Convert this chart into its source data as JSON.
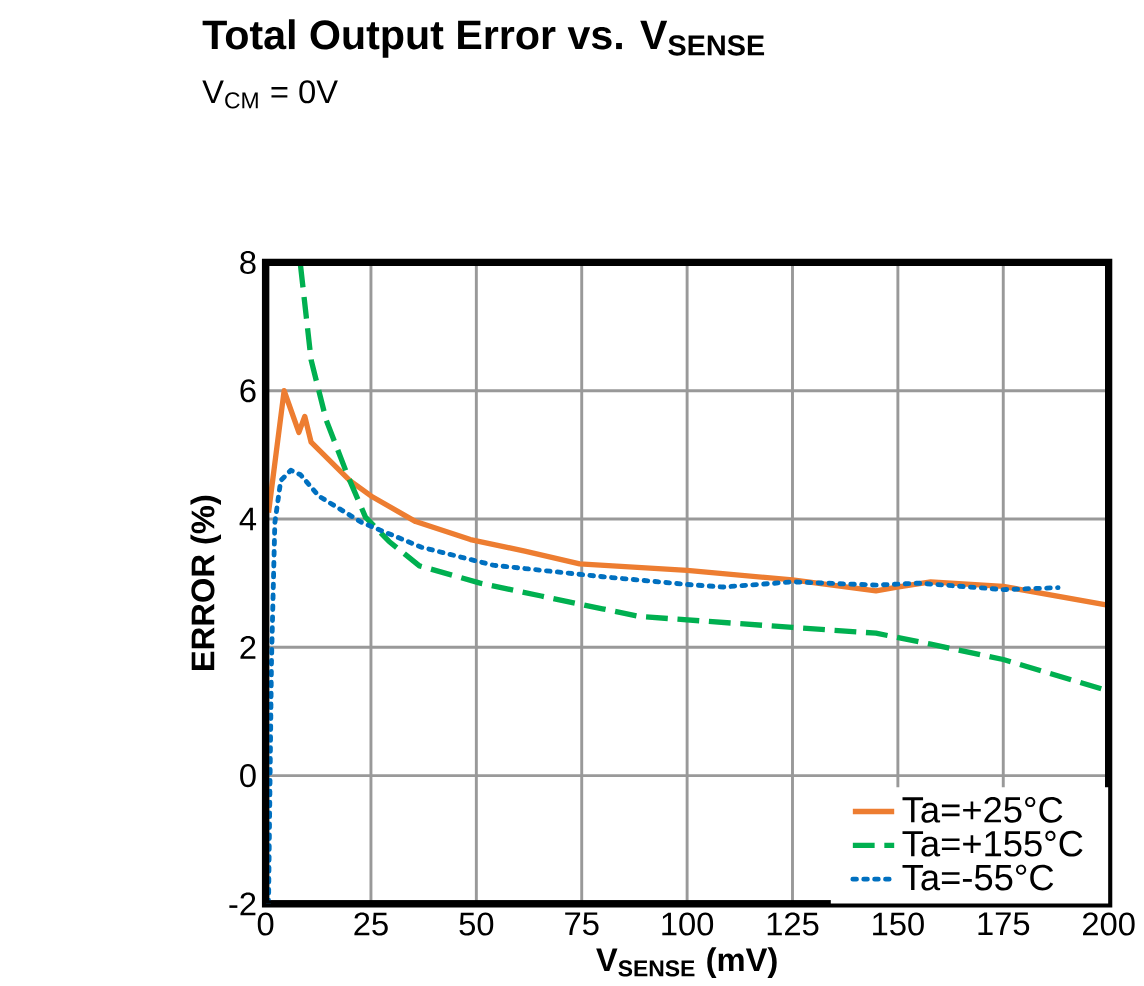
{
  "chart_data": {
    "type": "line",
    "title": "**Total Output Error vs. V$_{SENSE}$**",
    "subtitle": "V$_{CM}$ = 0V",
    "xlabel": "**V$_{SENSE}$ (mV)**",
    "ylabel": "**ERROR  (%)**",
    "xlim": [
      0,
      200
    ],
    "ylim": [
      -2,
      8
    ],
    "xticks": [
      0,
      25,
      50,
      75,
      100,
      125,
      150,
      175,
      200
    ],
    "yticks": [
      -2,
      0,
      2,
      4,
      6,
      8
    ],
    "grid": true,
    "legend": "bottom right",
    "marker": "none",
    "series": [
      {
        "name": "Ta=+25°C",
        "color": "#ed7d31",
        "line_style": "solid",
        "x": [
          0.7,
          4.4,
          7.9,
          9.3,
          10.8,
          20,
          25,
          35.6,
          48.6,
          61.5,
          74.5,
          100,
          125,
          144.8,
          149.8,
          157.8,
          175,
          199.4
        ],
        "values": [
          4.1,
          6.0,
          5.35,
          5.6,
          5.2,
          4.6,
          4.36,
          3.96,
          3.68,
          3.5,
          3.3,
          3.2,
          3.05,
          2.88,
          2.94,
          3.02,
          2.95,
          2.66
        ]
      },
      {
        "name": "Ta=+155°C",
        "color": "#00b050",
        "line_style": "dashed",
        "x": [
          8.3,
          10.8,
          14.4,
          19.4,
          23.7,
          29.3,
          36.5,
          50.9,
          65.4,
          79.9,
          88.8,
          125,
          144.8,
          157.8,
          175,
          200
        ],
        "values": [
          7.95,
          6.48,
          5.54,
          4.69,
          4.03,
          3.65,
          3.27,
          3.0,
          2.8,
          2.6,
          2.48,
          2.31,
          2.22,
          2.05,
          1.81,
          1.32
        ]
      },
      {
        "name": "Ta=-55°C",
        "color": "#0070c0",
        "line_style": "dotted",
        "x": [
          0.7,
          1.4,
          2.2,
          3.6,
          6.0,
          8.3,
          12.6,
          22.7,
          37,
          54,
          80,
          100,
          108.6,
          125,
          144.8,
          155,
          175,
          188
        ],
        "values": [
          -2,
          1.77,
          3.94,
          4.6,
          4.76,
          4.69,
          4.36,
          3.95,
          3.56,
          3.28,
          3.1,
          2.98,
          2.94,
          3.02,
          2.97,
          3.0,
          2.9,
          2.93
        ]
      }
    ]
  }
}
